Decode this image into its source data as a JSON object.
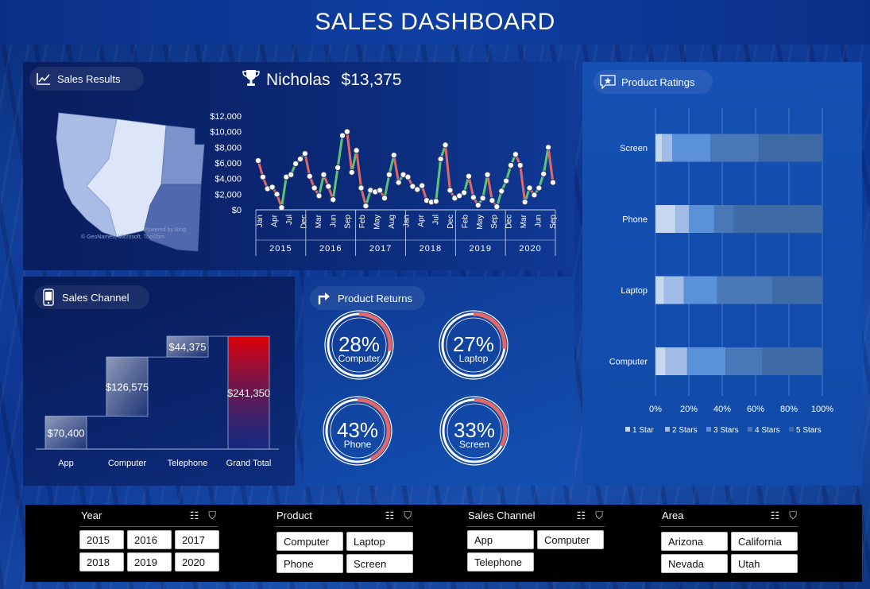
{
  "title": "SALES DASHBOARD",
  "colors": {
    "accent_red": "#e0686a",
    "accent_green": "#5ec27a",
    "grand_total_red": "#e0000a"
  },
  "sales_results": {
    "label": "Sales Results",
    "winner_name": "Nicholas",
    "winner_amount": "$13,375",
    "map_attribution": "© GeoNames, Microsoft, TomTom",
    "map_powered": "Powered by Bing",
    "y_ticks": [
      "$12,000",
      "$10,000",
      "$8,000",
      "$6,000",
      "$4,000",
      "$2,000",
      "$0"
    ],
    "month_ticks": [
      "Jan",
      "Apr",
      "Jul",
      "Dec",
      "Mar",
      "Jun",
      "Sep",
      "Feb",
      "May",
      "Aug",
      "Jan",
      "Apr",
      "Jul",
      "Dec",
      "Feb",
      "May",
      "Sep",
      "Dec",
      "Mar",
      "Jun",
      "Sep"
    ],
    "years": [
      "2015",
      "2016",
      "2017",
      "2018",
      "2019",
      "2020"
    ]
  },
  "chart_data": [
    {
      "type": "line",
      "ylim": [
        0,
        12000
      ],
      "values": [
        6300,
        4200,
        2700,
        2900,
        2000,
        300,
        4200,
        4500,
        5900,
        6500,
        7200,
        4300,
        2800,
        1800,
        4500,
        3000,
        1300,
        5400,
        9500,
        10000,
        4800,
        7600,
        2800,
        500,
        2500,
        2300,
        2500,
        1500,
        4500,
        7000,
        3500,
        4500,
        4200,
        3000,
        2600,
        3100,
        1200,
        1000,
        1100,
        6500,
        8300,
        2500,
        1500,
        1800,
        2200,
        4300,
        1600,
        600,
        1500,
        4500,
        1200,
        400,
        2400,
        3700,
        5700,
        7100,
        5700,
        1000,
        2800,
        1900,
        2800,
        4600,
        8000,
        3500
      ]
    },
    {
      "type": "bar",
      "title": "Sales Channel",
      "categories": [
        "App",
        "Computer",
        "Telephone",
        "Grand Total"
      ],
      "values": [
        70400,
        126575,
        44375,
        241350
      ],
      "value_labels": [
        "$70,400",
        "$126,575",
        "$44,375",
        "$241,350"
      ]
    },
    {
      "type": "bar",
      "title": "Product Ratings",
      "categories": [
        "Computer",
        "Laptop",
        "Phone",
        "Screen"
      ],
      "series": [
        {
          "name": "1 Star",
          "values": [
            6,
            5,
            12,
            4
          ]
        },
        {
          "name": "2 Stars",
          "values": [
            13,
            12,
            8,
            6
          ]
        },
        {
          "name": "3 Stars",
          "values": [
            23,
            20,
            15,
            23
          ]
        },
        {
          "name": "4 Stars",
          "values": [
            22,
            33,
            12,
            29
          ]
        },
        {
          "name": "5 Stars",
          "values": [
            36,
            30,
            53,
            38
          ]
        }
      ],
      "x_ticks": [
        "0%",
        "20%",
        "40%",
        "60%",
        "80%",
        "100%"
      ],
      "xlim": [
        0,
        100
      ]
    }
  ],
  "product_ratings": {
    "label": "Product Ratings",
    "legend": [
      "1 Star",
      "2 Stars",
      "3 Stars",
      "4 Stars",
      "5 Stars"
    ],
    "legend_colors": [
      "#c7d7f0",
      "#9fbbe6",
      "#5b91d9",
      "#4a77b8",
      "#3e6aa6"
    ]
  },
  "sales_channel": {
    "label": "Sales Channel"
  },
  "product_returns": {
    "label": "Product Returns",
    "gauges": [
      {
        "pct": "28%",
        "name": "Computer",
        "value": 0.28
      },
      {
        "pct": "27%",
        "name": "Laptop",
        "value": 0.27
      },
      {
        "pct": "43%",
        "name": "Phone",
        "value": 0.43
      },
      {
        "pct": "33%",
        "name": "Screen",
        "value": 0.33
      }
    ]
  },
  "slicers": {
    "year": {
      "title": "Year",
      "items": [
        "2015",
        "2016",
        "2017",
        "2018",
        "2019",
        "2020"
      ]
    },
    "product": {
      "title": "Product",
      "items": [
        "Computer",
        "Laptop",
        "Phone",
        "Screen"
      ]
    },
    "channel": {
      "title": "Sales Channel",
      "items": [
        "App",
        "Computer",
        "Telephone"
      ]
    },
    "area": {
      "title": "Area",
      "items": [
        "Arizona",
        "California",
        "Nevada",
        "Utah"
      ]
    }
  }
}
